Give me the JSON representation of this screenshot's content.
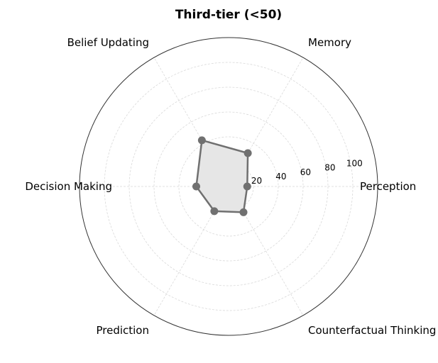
{
  "chart_data": {
    "type": "radar",
    "title": "Third-tier (<50)",
    "axes": [
      "Perception",
      "Memory",
      "Belief Updating",
      "Decision Making",
      "Prediction",
      "Counterfactual Thinking"
    ],
    "series": [
      {
        "values": [
          15,
          31,
          43,
          26,
          23,
          24
        ]
      }
    ],
    "radial_ticks": [
      "20",
      "40",
      "60",
      "80",
      "100"
    ],
    "radial_tick_values": [
      20,
      40,
      60,
      80,
      100
    ],
    "rmax": 120,
    "grid": true,
    "series_color": "#707070",
    "fill_color": "#e6e6e6"
  }
}
